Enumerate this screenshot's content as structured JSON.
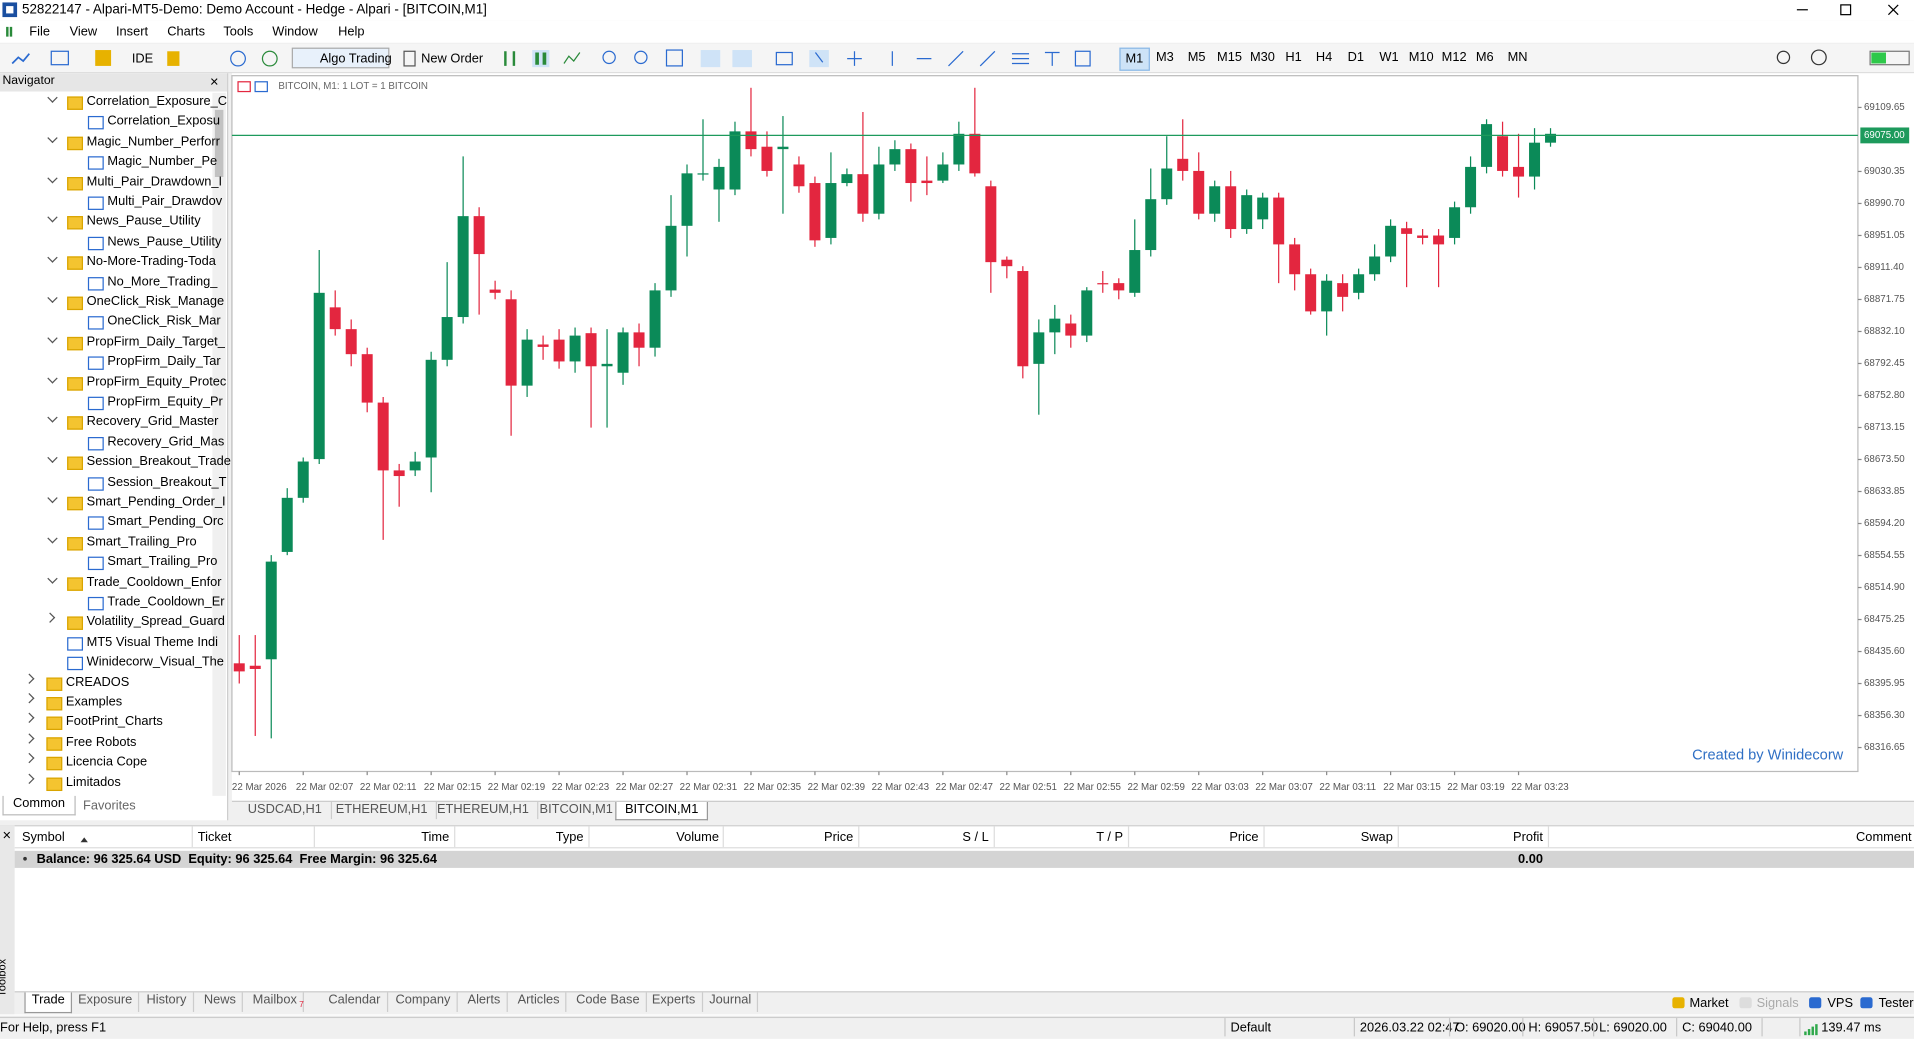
{
  "window": {
    "title": "52822147 - Alpari-MT5-Demo: Demo Account - Hedge - Alpari - [BITCOIN,M1]"
  },
  "menu": [
    "File",
    "View",
    "Insert",
    "Charts",
    "Tools",
    "Window",
    "Help"
  ],
  "toolbar": {
    "ide": "IDE",
    "algo": "Algo Trading",
    "order": "New Order",
    "timeframes": [
      "M1",
      "M3",
      "M5",
      "M15",
      "M30",
      "H1",
      "H4",
      "D1",
      "W1",
      "M10",
      "M12",
      "M6",
      "MN"
    ],
    "active_timeframe": 0
  },
  "navigator": {
    "title": "Navigator",
    "groups": [
      {
        "label": "Correlation_Exposure_C",
        "child": "Correlation_Exposu"
      },
      {
        "label": "Magic_Number_Perforr",
        "child": "Magic_Number_Pe"
      },
      {
        "label": "Multi_Pair_Drawdown_I",
        "child": "Multi_Pair_Drawdov"
      },
      {
        "label": "News_Pause_Utility",
        "child": "News_Pause_Utility"
      },
      {
        "label": "No-More-Trading-Toda",
        "child": "No_More_Trading_"
      },
      {
        "label": "OneClick_Risk_Manage",
        "child": "OneClick_Risk_Mar"
      },
      {
        "label": "PropFirm_Daily_Target_",
        "child": "PropFirm_Daily_Tar"
      },
      {
        "label": "PropFirm_Equity_Protec",
        "child": "PropFirm_Equity_Pr"
      },
      {
        "label": "Recovery_Grid_Master",
        "child": "Recovery_Grid_Mas"
      },
      {
        "label": "Session_Breakout_Trade",
        "child": "Session_Breakout_T"
      },
      {
        "label": "Smart_Pending_Order_I",
        "child": "Smart_Pending_Orc"
      },
      {
        "label": "Smart_Trailing_Pro",
        "child": "Smart_Trailing_Pro"
      },
      {
        "label": "Trade_Cooldown_Enfor",
        "child": "Trade_Cooldown_Er"
      }
    ],
    "collapsed": [
      "Volatility_Spread_Guard"
    ],
    "files": [
      "MT5  Visual Theme Indi",
      "Winidecorw_Visual_The"
    ],
    "folders": [
      "CREADOS",
      "Examples",
      "FootPrint_Charts",
      "Free Robots",
      "Licencia Cope",
      "Limitados"
    ],
    "tabs": [
      "Common",
      "Favorites"
    ]
  },
  "chart_data": {
    "type": "candlestick",
    "title": "BITCOIN, M1:  1 LOT = 1 BITCOIN",
    "annotation": "Created by Winidecorw",
    "up_color": "#0b8a58",
    "down_color": "#e3263f",
    "price_line_color": "#1d9a5c",
    "categories": [
      "22 Mar 2026",
      null,
      null,
      null,
      "22 Mar 02:07",
      null,
      null,
      null,
      "22 Mar 02:11",
      null,
      null,
      null,
      "22 Mar 02:15",
      null,
      null,
      null,
      "22 Mar 02:19",
      null,
      null,
      null,
      "22 Mar 02:23",
      null,
      null,
      null,
      "22 Mar 02:27",
      null,
      null,
      null,
      "22 Mar 02:31",
      null,
      null,
      null,
      "22 Mar 02:35",
      null,
      null,
      null,
      "22 Mar 02:39",
      null,
      null,
      null,
      "22 Mar 02:43",
      null,
      null,
      null,
      "22 Mar 02:47",
      null,
      null,
      null,
      "22 Mar 02:51",
      null,
      null,
      null,
      "22 Mar 02:55",
      null,
      null,
      null,
      "22 Mar 02:59",
      null,
      null,
      null,
      "22 Mar 03:03",
      null,
      null,
      null,
      "22 Mar 03:07",
      null,
      null,
      null,
      "22 Mar 03:11",
      null,
      null,
      null,
      "22 Mar 03:15",
      null,
      null,
      null,
      "22 Mar 03:19",
      null,
      null,
      null,
      "22 Mar 03:23",
      null,
      null
    ],
    "open": [
      68421,
      68418,
      68426,
      68559,
      68626,
      68674,
      68862,
      68835,
      68804,
      68744,
      68660,
      68660,
      68676,
      68797,
      68850,
      68975,
      68884,
      68872,
      68765,
      68816,
      68822,
      68795,
      68830,
      68789,
      68781,
      68831,
      68812,
      68883,
      68963,
      69027,
      69008,
      69008,
      69080,
      69061,
      69058,
      69039,
      69016,
      68948,
      69016,
      69027,
      68978,
      69039,
      69058,
      69019,
      69019,
      69039,
      69077,
      69012,
      68921,
      68907,
      68792,
      68831,
      68842,
      68827,
      68892,
      68892,
      68880,
      68933,
      68996,
      69046,
      69031,
      68978,
      69012,
      68959,
      68971,
      68998,
      68940,
      68903,
      68857,
      68892,
      68880,
      68903,
      68925,
      68960,
      68951,
      68951,
      68948,
      68986,
      69036,
      69074,
      69036,
      69024,
      69066
    ],
    "high": [
      68456,
      68456,
      68555,
      68638,
      68676,
      68933,
      68883,
      68847,
      68812,
      68751,
      68668,
      68683,
      68807,
      68918,
      69049,
      68986,
      68895,
      68883,
      68835,
      68827,
      68835,
      68837,
      68837,
      68835,
      68837,
      68842,
      68892,
      69001,
      69039,
      69095,
      69046,
      69092,
      69134,
      69080,
      69099,
      69049,
      69024,
      69054,
      69034,
      69104,
      69061,
      69069,
      69065,
      69049,
      69054,
      69092,
      69134,
      69019,
      68925,
      68913,
      68847,
      68865,
      68853,
      68887,
      68907,
      68898,
      68971,
      69034,
      69074,
      69095,
      69054,
      69019,
      69031,
      69008,
      69004,
      69004,
      68948,
      68910,
      68903,
      68903,
      68910,
      68940,
      68971,
      68968,
      68959,
      68959,
      68993,
      69049,
      69095,
      69092,
      69077,
      69084,
      69084
    ],
    "low": [
      68396,
      68331,
      68328,
      68555,
      68620,
      68668,
      68827,
      68789,
      68732,
      68574,
      68615,
      68653,
      68633,
      68789,
      68842,
      68853,
      68872,
      68703,
      68751,
      68797,
      68786,
      68781,
      68713,
      68713,
      68766,
      68789,
      68801,
      68875,
      68925,
      69019,
      68968,
      69001,
      69049,
      69024,
      68978,
      69004,
      68937,
      68940,
      69012,
      68968,
      68971,
      69031,
      68993,
      69001,
      69016,
      69031,
      69024,
      68880,
      68898,
      68774,
      68729,
      68804,
      68812,
      68819,
      68880,
      68872,
      68875,
      68925,
      68989,
      69019,
      68971,
      68968,
      68948,
      68953,
      68959,
      68892,
      68883,
      68853,
      68827,
      68857,
      68872,
      68895,
      68918,
      68887,
      68940,
      68887,
      68940,
      68978,
      69028,
      69024,
      68998,
      69008,
      69061
    ],
    "close": [
      68411,
      68414,
      68547,
      68626,
      68671,
      68880,
      68835,
      68804,
      68744,
      68660,
      68653,
      68671,
      68797,
      68850,
      68975,
      68928,
      68880,
      68765,
      68822,
      68813,
      68795,
      68827,
      68789,
      68792,
      68831,
      68812,
      68883,
      68963,
      69028,
      69028,
      69036,
      69080,
      69058,
      69031,
      69061,
      69012,
      68945,
      69016,
      69027,
      68978,
      69039,
      69058,
      69016,
      69016,
      69039,
      69077,
      69028,
      68918,
      68913,
      68789,
      68831,
      68848,
      68827,
      68883,
      68891,
      68883,
      68933,
      68996,
      69034,
      69031,
      68978,
      69012,
      68959,
      69001,
      68998,
      68940,
      68903,
      68857,
      68895,
      68875,
      68903,
      68925,
      68963,
      68953,
      68948,
      68940,
      68986,
      69036,
      69089,
      69031,
      69024,
      69066,
      69077
    ],
    "current_price": {
      "value": 69075,
      "label": "69075.00"
    },
    "ylim": [
      68287,
      69149
    ],
    "yticks": [
      {
        "value": 69109.65,
        "label": "69109.65"
      },
      {
        "value": 69030.35,
        "label": "69030.35"
      },
      {
        "value": 68990.7,
        "label": "68990.70"
      },
      {
        "value": 68951.05,
        "label": "68951.05"
      },
      {
        "value": 68911.4,
        "label": "68911.40"
      },
      {
        "value": 68871.75,
        "label": "68871.75"
      },
      {
        "value": 68832.1,
        "label": "68832.10"
      },
      {
        "value": 68792.45,
        "label": "68792.45"
      },
      {
        "value": 68752.8,
        "label": "68752.80"
      },
      {
        "value": 68713.15,
        "label": "68713.15"
      },
      {
        "value": 68673.5,
        "label": "68673.50"
      },
      {
        "value": 68633.85,
        "label": "68633.85"
      },
      {
        "value": 68594.2,
        "label": "68594.20"
      },
      {
        "value": 68554.55,
        "label": "68554.55"
      },
      {
        "value": 68514.9,
        "label": "68514.90"
      },
      {
        "value": 68475.25,
        "label": "68475.25"
      },
      {
        "value": 68435.6,
        "label": "68435.60"
      },
      {
        "value": 68395.95,
        "label": "68395.95"
      },
      {
        "value": 68356.3,
        "label": "68356.30"
      },
      {
        "value": 68316.65,
        "label": "68316.65"
      }
    ]
  },
  "chart_tabs": {
    "tabs": [
      "USDCAD,H1",
      "ETHEREUM,H1",
      "ETHEREUM,H1",
      "BITCOIN,M1",
      "BITCOIN,M1"
    ],
    "active": 4
  },
  "toolbox": {
    "label": "Toolbox",
    "columns": [
      "Symbol",
      "Ticket",
      "Time",
      "Type",
      "Volume",
      "Price",
      "S / L",
      "T / P",
      "Price",
      "Swap",
      "Profit",
      "Comment"
    ],
    "balance": "Balance: 96 325.64 USD  Equity: 96 325.64  Free Margin: 96 325.64",
    "profit": "0.00",
    "tabs": [
      "Trade",
      "Exposure",
      "History",
      "News",
      "Mailbox",
      "Calendar",
      "Company",
      "Alerts",
      "Articles",
      "Code Base",
      "Experts",
      "Journal"
    ],
    "active": 0,
    "mailbox_badge": "7",
    "services": [
      "Market",
      "Signals",
      "VPS",
      "Tester"
    ]
  },
  "status": {
    "help": "For Help, press F1",
    "profile": "Default",
    "time": "2026.03.22 02:47",
    "open": "O: 69020.00",
    "high": "H: 69057.50",
    "low": "L: 69020.00",
    "close": "C: 69040.00",
    "ping": "139.47 ms"
  }
}
